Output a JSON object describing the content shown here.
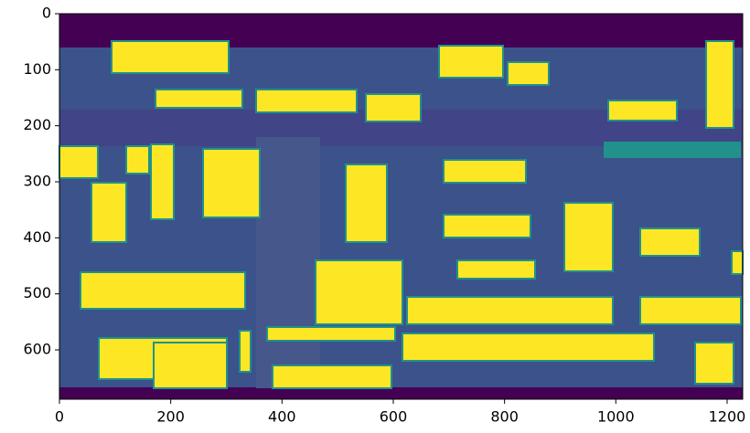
{
  "chart_data": {
    "type": "image",
    "xlim": [
      0,
      1228
    ],
    "ylim": [
      688,
      0
    ],
    "xticks": [
      0,
      200,
      400,
      600,
      800,
      1000,
      1200
    ],
    "yticks": [
      0,
      100,
      200,
      300,
      400,
      500,
      600
    ]
  }
}
